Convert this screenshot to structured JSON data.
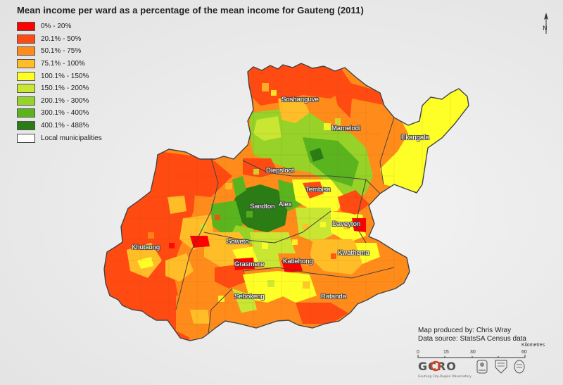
{
  "title": "Mean income per ward as a percentage of the mean income for Gauteng (2011)",
  "legend": [
    {
      "label": "0% - 20%",
      "color": "#ff0000"
    },
    {
      "label": "20.1% - 50%",
      "color": "#ff4a12"
    },
    {
      "label": "50.1% - 75%",
      "color": "#ff8c1a"
    },
    {
      "label": "75.1% - 100%",
      "color": "#ffbe28"
    },
    {
      "label": "100.1% - 150%",
      "color": "#ffff28"
    },
    {
      "label": "150.1% - 200%",
      "color": "#c8e632"
    },
    {
      "label": "200.1% - 300%",
      "color": "#96d228"
    },
    {
      "label": "300.1% - 400%",
      "color": "#5ab41e"
    },
    {
      "label": "400.1% - 488%",
      "color": "#2a7d14"
    },
    {
      "label": "Local municipalities",
      "color": "#ffffff"
    }
  ],
  "towns": [
    {
      "name": "Soshanguve"
    },
    {
      "name": "Mamelodi"
    },
    {
      "name": "Ekangala"
    },
    {
      "name": "Diepsloot"
    },
    {
      "name": "Tembisa"
    },
    {
      "name": "Sandton"
    },
    {
      "name": "Alex"
    },
    {
      "name": "Daveyton"
    },
    {
      "name": "Khutsong"
    },
    {
      "name": "Soweto"
    },
    {
      "name": "Kwathema"
    },
    {
      "name": "Grasmere"
    },
    {
      "name": "Katlehong"
    },
    {
      "name": "Sebokeng"
    },
    {
      "name": "Ratanda"
    }
  ],
  "north_arrow": {
    "label": "N",
    "icon": "north-arrow-icon"
  },
  "credits": {
    "produced_by": "Map produced by: Chris Wray",
    "source": "Data source: StatsSA Census data"
  },
  "scale": {
    "ticks": [
      "0",
      "15",
      "30",
      "60"
    ],
    "unit": "Kilometres"
  },
  "logos": {
    "gcro": "GCRO",
    "gcro_sub": "Gauteng City-Region Observatory",
    "others": [
      "gauteng-coat-of-arms-icon",
      "university-crest-icon",
      "uj-crest-icon"
    ]
  }
}
